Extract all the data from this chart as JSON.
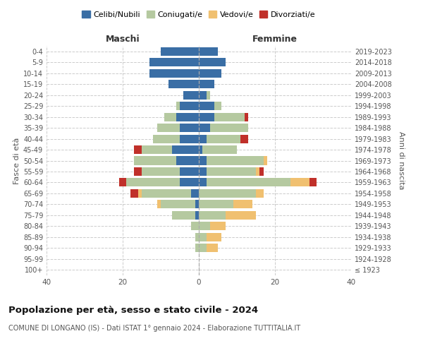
{
  "age_groups": [
    "100+",
    "95-99",
    "90-94",
    "85-89",
    "80-84",
    "75-79",
    "70-74",
    "65-69",
    "60-64",
    "55-59",
    "50-54",
    "45-49",
    "40-44",
    "35-39",
    "30-34",
    "25-29",
    "20-24",
    "15-19",
    "10-14",
    "5-9",
    "0-4"
  ],
  "birth_years": [
    "≤ 1923",
    "1924-1928",
    "1929-1933",
    "1934-1938",
    "1939-1943",
    "1944-1948",
    "1949-1953",
    "1954-1958",
    "1959-1963",
    "1964-1968",
    "1969-1973",
    "1974-1978",
    "1979-1983",
    "1984-1988",
    "1989-1993",
    "1994-1998",
    "1999-2003",
    "2004-2008",
    "2009-2013",
    "2014-2018",
    "2019-2023"
  ],
  "male": {
    "celibi": [
      0,
      0,
      0,
      0,
      0,
      1,
      1,
      2,
      5,
      5,
      6,
      7,
      5,
      5,
      6,
      5,
      4,
      8,
      13,
      13,
      10
    ],
    "coniugati": [
      0,
      0,
      1,
      1,
      2,
      6,
      9,
      13,
      14,
      10,
      11,
      8,
      7,
      6,
      3,
      1,
      0,
      0,
      0,
      0,
      0
    ],
    "vedovi": [
      0,
      0,
      0,
      0,
      0,
      0,
      1,
      1,
      0,
      0,
      0,
      0,
      0,
      0,
      0,
      0,
      0,
      0,
      0,
      0,
      0
    ],
    "divorziati": [
      0,
      0,
      0,
      0,
      0,
      0,
      0,
      2,
      2,
      2,
      0,
      2,
      0,
      0,
      0,
      0,
      0,
      0,
      0,
      0,
      0
    ]
  },
  "female": {
    "nubili": [
      0,
      0,
      0,
      0,
      0,
      0,
      0,
      0,
      2,
      2,
      2,
      1,
      2,
      3,
      4,
      4,
      2,
      4,
      6,
      7,
      5
    ],
    "coniugate": [
      0,
      0,
      2,
      2,
      3,
      7,
      9,
      15,
      22,
      13,
      15,
      9,
      9,
      10,
      8,
      2,
      1,
      0,
      0,
      0,
      0
    ],
    "vedove": [
      0,
      0,
      3,
      4,
      4,
      8,
      5,
      2,
      5,
      1,
      1,
      0,
      0,
      0,
      0,
      0,
      0,
      0,
      0,
      0,
      0
    ],
    "divorziate": [
      0,
      0,
      0,
      0,
      0,
      0,
      0,
      0,
      2,
      1,
      0,
      0,
      2,
      0,
      1,
      0,
      0,
      0,
      0,
      0,
      0
    ]
  },
  "colors": {
    "celibi": "#3a6ea5",
    "coniugati": "#b5c9a0",
    "vedovi": "#f0c070",
    "divorziati": "#c0302a"
  },
  "xlim": 40,
  "title": "Popolazione per età, sesso e stato civile - 2024",
  "subtitle": "COMUNE DI LONGANO (IS) - Dati ISTAT 1° gennaio 2024 - Elaborazione TUTTITALIA.IT",
  "legend_labels": [
    "Celibi/Nubili",
    "Coniugati/e",
    "Vedovi/e",
    "Divorziati/e"
  ],
  "ylabel_left": "Fasce di età",
  "ylabel_right": "Anni di nascita",
  "xlabel_male": "Maschi",
  "xlabel_female": "Femmine"
}
